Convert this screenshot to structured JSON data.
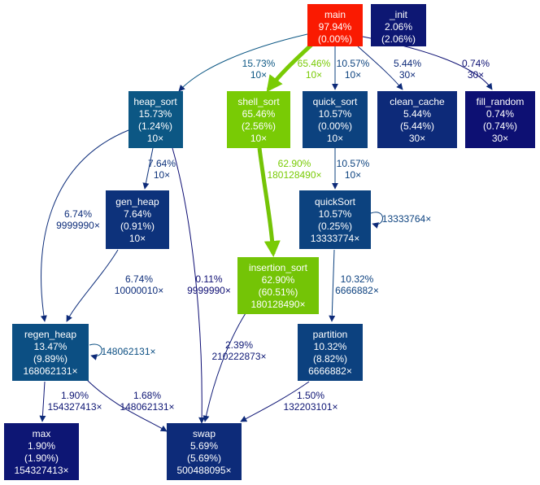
{
  "nodes": {
    "main": {
      "lines": [
        "main",
        "97.94%",
        "(0.00%)"
      ],
      "color": "#fa1a01",
      "text_color": "#ffffff"
    },
    "init": {
      "lines": [
        "_init",
        "2.06%",
        "(2.06%)"
      ],
      "color": "#0d1773",
      "text_color": "#ffffff"
    },
    "heap_sort": {
      "lines": [
        "heap_sort",
        "15.73%",
        "(1.24%)",
        "10×"
      ],
      "color": "#0c5784",
      "text_color": "#ffffff"
    },
    "shell_sort": {
      "lines": [
        "shell_sort",
        "65.46%",
        "(2.56%)",
        "10×"
      ],
      "color": "#79cb05",
      "text_color": "#ffffff"
    },
    "quick_sort": {
      "lines": [
        "quick_sort",
        "10.57%",
        "(0.00%)",
        "10×"
      ],
      "color": "#0c427f",
      "text_color": "#ffffff"
    },
    "clean_cache": {
      "lines": [
        "clean_cache",
        "5.44%",
        "(5.44%)",
        "30×"
      ],
      "color": "#0d2a79",
      "text_color": "#ffffff"
    },
    "fill_random": {
      "lines": [
        "fill_random",
        "0.74%",
        "(0.74%)",
        "30×"
      ],
      "color": "#0d1073",
      "text_color": "#ffffff"
    },
    "gen_heap": {
      "lines": [
        "gen_heap",
        "7.64%",
        "(0.91%)",
        "10×"
      ],
      "color": "#0d327b",
      "text_color": "#ffffff"
    },
    "quickSort": {
      "lines": [
        "quickSort",
        "10.57%",
        "(0.25%)",
        "13333774×"
      ],
      "color": "#0c427f",
      "text_color": "#ffffff"
    },
    "insertion_sort": {
      "lines": [
        "insertion_sort",
        "62.90%",
        "(60.51%)",
        "180128490×"
      ],
      "color": "#74c406",
      "text_color": "#ffffff"
    },
    "regen_heap": {
      "lines": [
        "regen_heap",
        "13.47%",
        "(9.89%)",
        "168062131×"
      ],
      "color": "#0c4f83",
      "text_color": "#ffffff"
    },
    "partition": {
      "lines": [
        "partition",
        "10.32%",
        "(8.82%)",
        "6666882×"
      ],
      "color": "#0c417f",
      "text_color": "#ffffff"
    },
    "max": {
      "lines": [
        "max",
        "1.90%",
        "(1.90%)",
        "154327413×"
      ],
      "color": "#0d1674",
      "text_color": "#ffffff"
    },
    "swap": {
      "lines": [
        "swap",
        "5.69%",
        "(5.69%)",
        "500488095×"
      ],
      "color": "#0d2b79",
      "text_color": "#ffffff"
    }
  },
  "edges": {
    "main_heap_sort": {
      "label": [
        "15.73%",
        "10×"
      ],
      "color": "#0c5784"
    },
    "main_shell_sort": {
      "label": [
        "65.46%",
        "10×"
      ],
      "color": "#79cb05"
    },
    "main_quick_sort": {
      "label": [
        "10.57%",
        "10×"
      ],
      "color": "#0c427f"
    },
    "main_clean_cache": {
      "label": [
        "5.44%",
        "30×"
      ],
      "color": "#0d2a79"
    },
    "main_fill_random": {
      "label": [
        "0.74%",
        "30×"
      ],
      "color": "#0d1073"
    },
    "heap_sort_gen_heap": {
      "label": [
        "7.64%",
        "10×"
      ],
      "color": "#0d327b"
    },
    "heap_sort_regen_heap": {
      "label": [
        "6.74%",
        "9999990×"
      ],
      "color": "#0d2d7a"
    },
    "heap_sort_swap": {
      "label": [
        "0.11%",
        "9999990×"
      ],
      "color": "#0d0d73"
    },
    "shell_sort_insertion": {
      "label": [
        "62.90%",
        "180128490×"
      ],
      "color": "#74c406"
    },
    "quick_sort_quickSort": {
      "label": [
        "10.57%",
        "10×"
      ],
      "color": "#0c427f"
    },
    "quickSort_self": {
      "label": [
        "13333764×"
      ],
      "color": "#0c427f"
    },
    "quickSort_partition": {
      "label": [
        "10.32%",
        "6666882×"
      ],
      "color": "#0c417f"
    },
    "gen_heap_regen_heap": {
      "label": [
        "6.74%",
        "10000010×"
      ],
      "color": "#0d2d7a"
    },
    "regen_self": {
      "label": [
        "148062131×"
      ],
      "color": "#0c4f83"
    },
    "regen_max": {
      "label": [
        "1.90%",
        "154327413×"
      ],
      "color": "#0d1674"
    },
    "regen_swap": {
      "label": [
        "1.68%",
        "148062131×"
      ],
      "color": "#0d1574"
    },
    "insertion_swap": {
      "label": [
        "2.39%",
        "210222873×"
      ],
      "color": "#0d1875"
    },
    "partition_swap": {
      "label": [
        "1.50%",
        "132203101×"
      ],
      "color": "#0d1474"
    }
  }
}
